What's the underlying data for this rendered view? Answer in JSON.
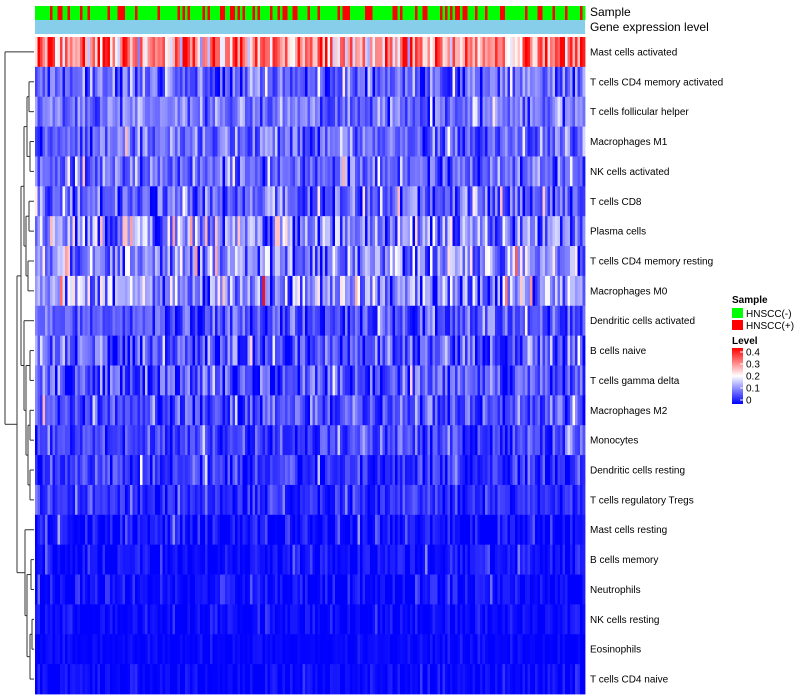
{
  "chart_data": {
    "type": "heatmap",
    "title": "",
    "annotation_tracks": [
      "Sample",
      "Gene expression level"
    ],
    "rows": [
      {
        "name": "Mast cells activated",
        "mean": 0.28,
        "sd": 0.08
      },
      {
        "name": "T cells CD4 memory activated",
        "mean": 0.08,
        "sd": 0.05
      },
      {
        "name": "T cells follicular helper",
        "mean": 0.09,
        "sd": 0.04
      },
      {
        "name": "Macrophages M1",
        "mean": 0.08,
        "sd": 0.04
      },
      {
        "name": "NK cells activated",
        "mean": 0.08,
        "sd": 0.04
      },
      {
        "name": "T cells CD8",
        "mean": 0.07,
        "sd": 0.05
      },
      {
        "name": "Plasma cells",
        "mean": 0.12,
        "sd": 0.07
      },
      {
        "name": "T cells CD4 memory resting",
        "mean": 0.11,
        "sd": 0.06
      },
      {
        "name": "Macrophages M0",
        "mean": 0.12,
        "sd": 0.06
      },
      {
        "name": "Dendritic cells activated",
        "mean": 0.06,
        "sd": 0.04
      },
      {
        "name": "B cells naive",
        "mean": 0.06,
        "sd": 0.05
      },
      {
        "name": "T cells gamma delta",
        "mean": 0.06,
        "sd": 0.05
      },
      {
        "name": "Macrophages M2",
        "mean": 0.06,
        "sd": 0.04
      },
      {
        "name": "Monocytes",
        "mean": 0.05,
        "sd": 0.03
      },
      {
        "name": "Dendritic cells resting",
        "mean": 0.04,
        "sd": 0.03
      },
      {
        "name": "T cells regulatory  Tregs",
        "mean": 0.03,
        "sd": 0.03
      },
      {
        "name": "Mast cells resting",
        "mean": 0.01,
        "sd": 0.03
      },
      {
        "name": "B cells memory",
        "mean": 0.01,
        "sd": 0.02
      },
      {
        "name": "Neutrophils",
        "mean": 0.01,
        "sd": 0.02
      },
      {
        "name": "NK cells resting",
        "mean": 0.005,
        "sd": 0.015
      },
      {
        "name": "Eosinophils",
        "mean": 0.003,
        "sd": 0.01
      },
      {
        "name": "T cells CD4 naive",
        "mean": 0.005,
        "sd": 0.015
      }
    ],
    "n_samples": 220,
    "sample_group_fraction_positive": 0.33,
    "color_scale": {
      "title": "Level",
      "ticks": [
        "0.4",
        "0.3",
        "0.2",
        "0.1",
        "0"
      ],
      "range": [
        0,
        0.4
      ],
      "low_color": "#0000ff",
      "mid_color": "#ffffff",
      "high_color": "#ff0000",
      "mid_value": 0.2
    },
    "sample_legend": {
      "title": "Sample",
      "entries": [
        {
          "label": "HNSCC(-)",
          "color": "#00ff00"
        },
        {
          "label": "HNSCC(+)",
          "color": "#ff0000"
        }
      ]
    },
    "expression_track_color": "#87ceeb",
    "dendrogram_side": "left"
  }
}
